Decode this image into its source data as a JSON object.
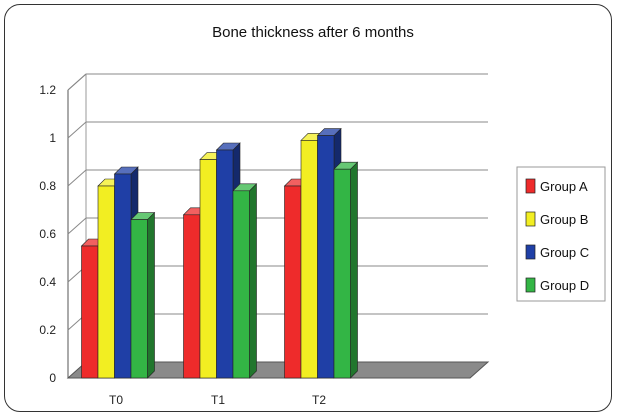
{
  "chart_data": {
    "type": "bar",
    "title": "Bone thickness after 6 months",
    "xlabel": "",
    "ylabel": "",
    "categories": [
      "T0",
      "T1",
      "T2"
    ],
    "series": [
      {
        "name": "Group A",
        "values": [
          0.55,
          0.68,
          0.8
        ],
        "color": "#ee2b2b"
      },
      {
        "name": "Group B",
        "values": [
          0.8,
          0.91,
          0.99
        ],
        "color": "#f2ee22"
      },
      {
        "name": "Group C",
        "values": [
          0.85,
          0.95,
          1.01
        ],
        "color": "#1f3fa6"
      },
      {
        "name": "Group D",
        "values": [
          0.66,
          0.78,
          0.87
        ],
        "color": "#33b545"
      }
    ],
    "ylim": [
      0,
      1.2
    ],
    "yticks": [
      "0",
      "0.2",
      "0.4",
      "0.6",
      "0.8",
      "1",
      "1.2"
    ],
    "grid": true,
    "legend": "right"
  }
}
